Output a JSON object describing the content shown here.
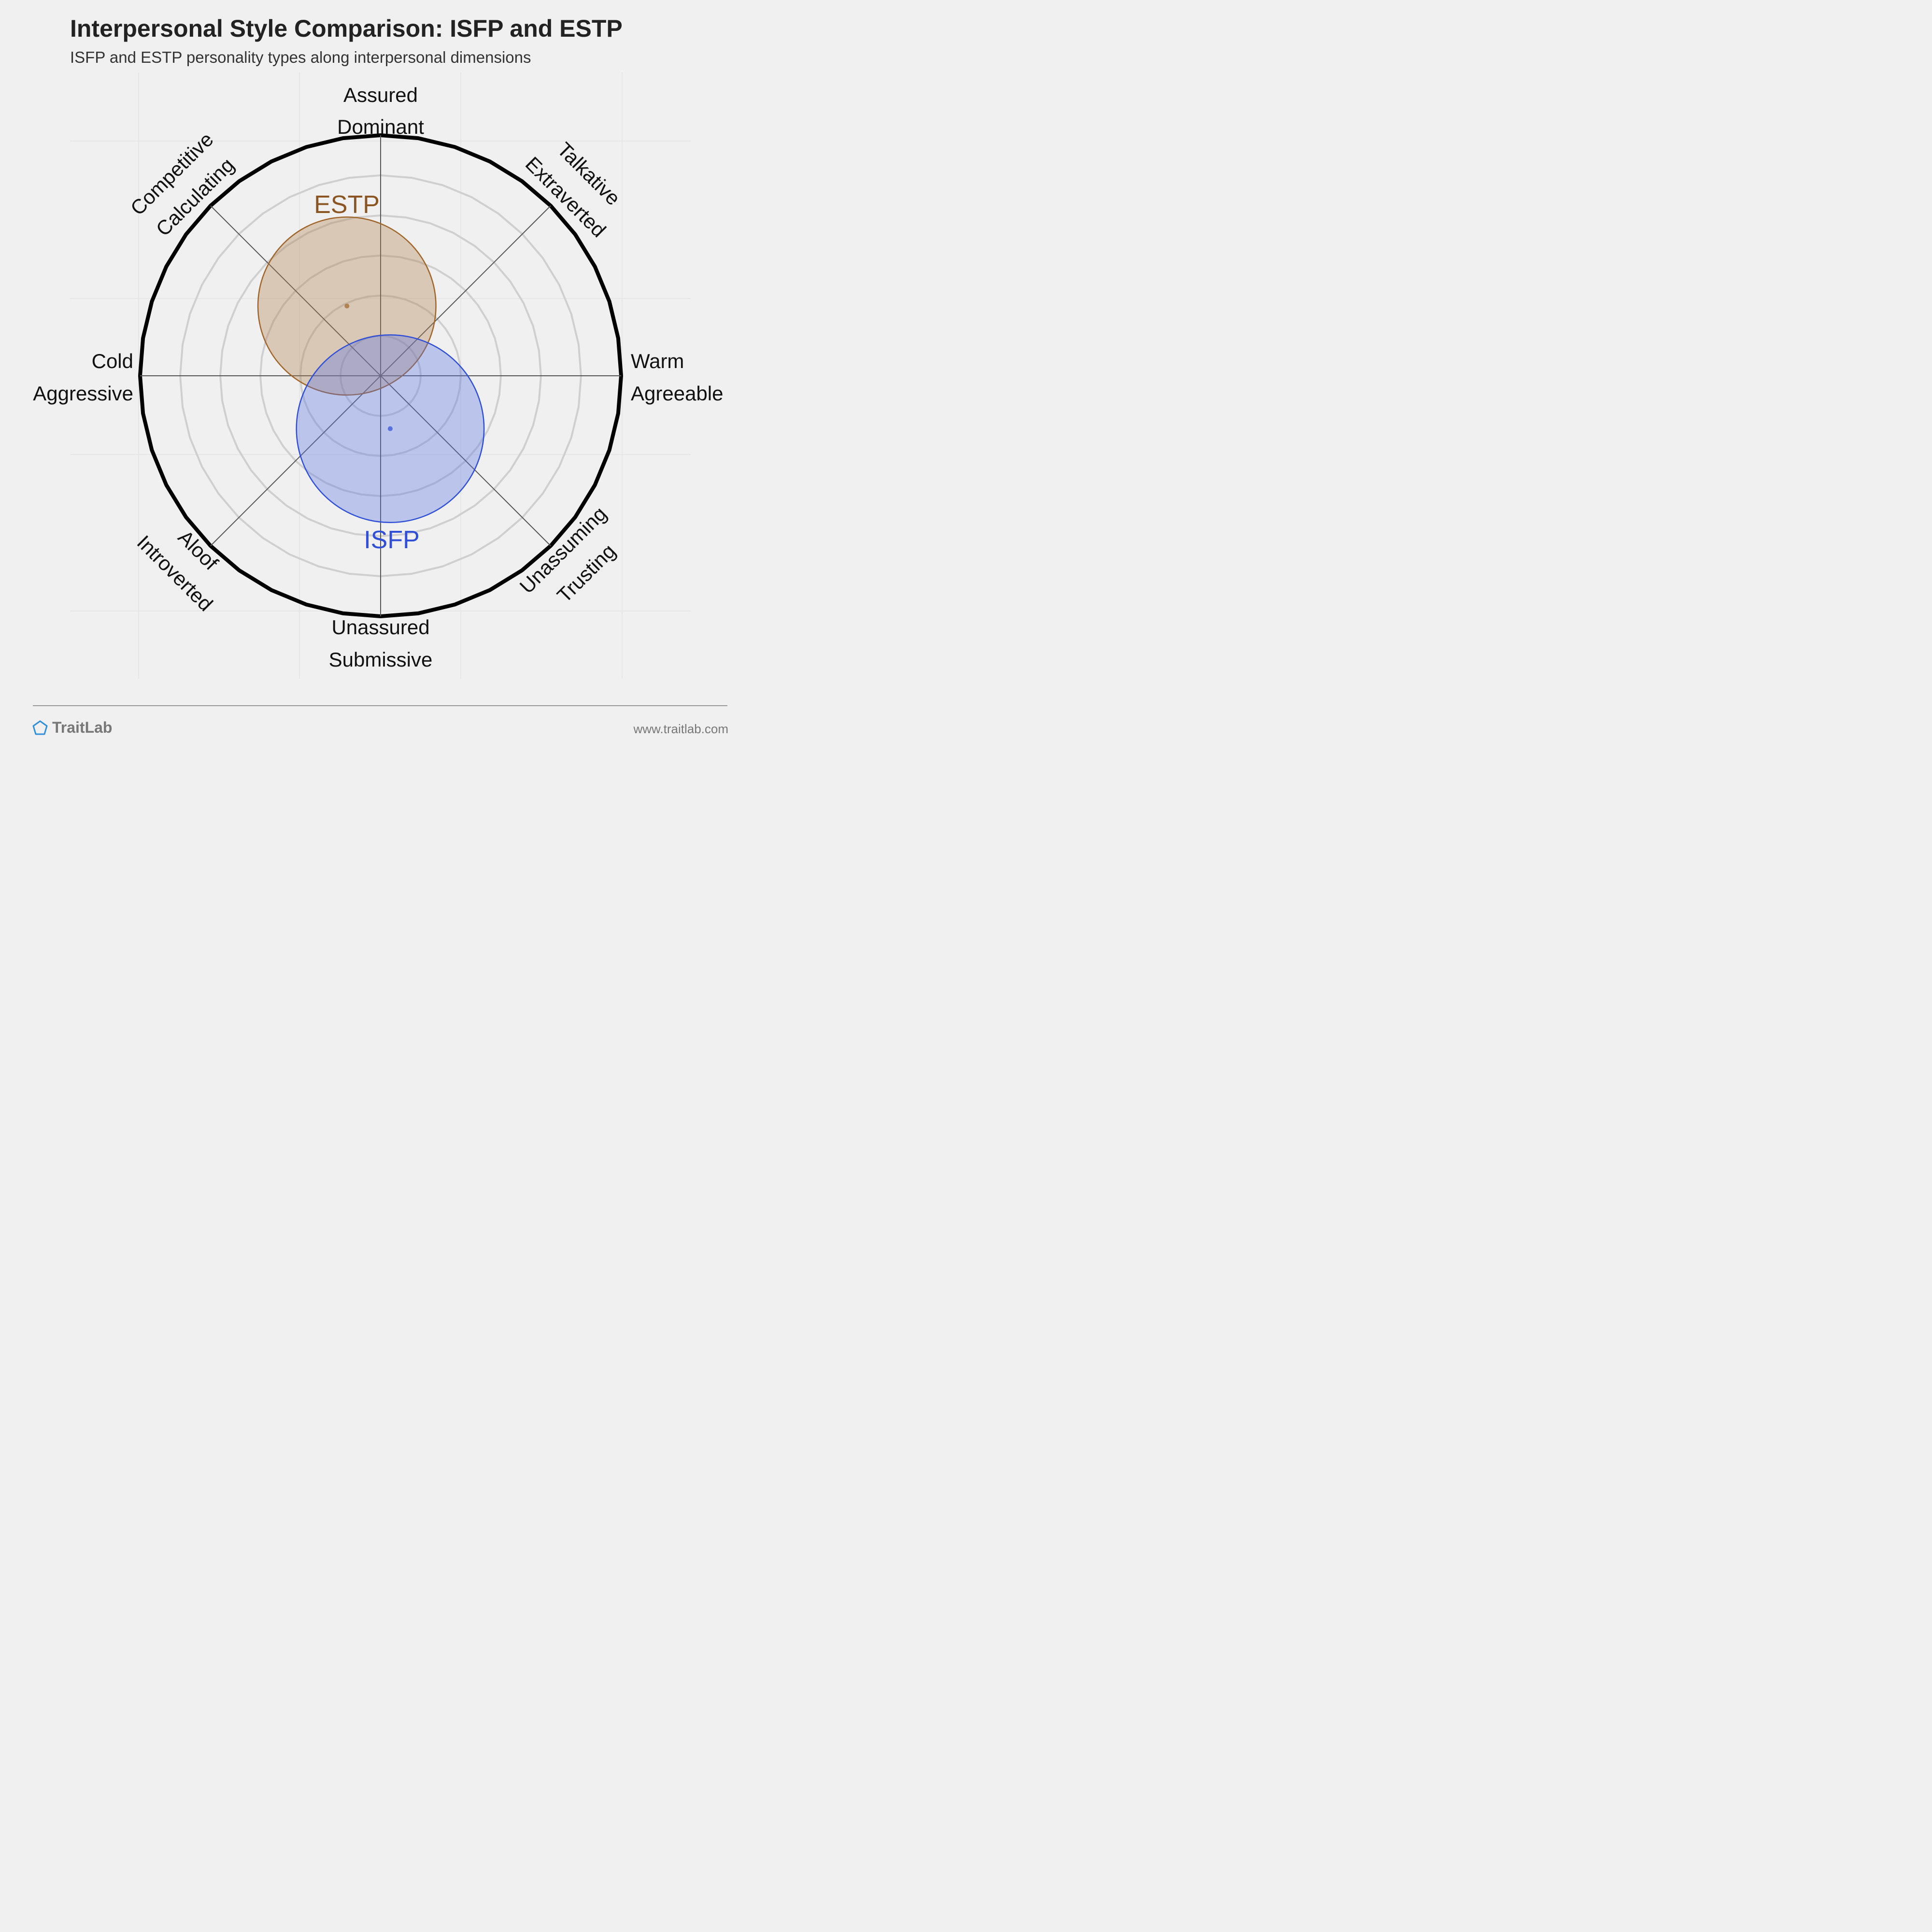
{
  "title": "Interpersonal Style Comparison: ISFP and ESTP",
  "subtitle": "ISFP and ESTP personality types along interpersonal dimensions",
  "axes": {
    "top": [
      "Assured",
      "Dominant"
    ],
    "bottom": [
      "Unassured",
      "Submissive"
    ],
    "left": [
      "Cold",
      "Aggressive"
    ],
    "right": [
      "Warm",
      "Agreeable"
    ],
    "top_left": [
      "Competitive",
      "Calculating"
    ],
    "top_right": [
      "Talkative",
      "Extraverted"
    ],
    "bottom_left": [
      "Aloof",
      "Introverted"
    ],
    "bottom_right": [
      "Unassuming",
      "Trusting"
    ]
  },
  "chart_data": {
    "type": "scatter",
    "x_axis": "Cold/Aggressive to Warm/Agreeable",
    "y_axis": "Unassured/Submissive to Assured/Dominant",
    "xlim": [
      -1,
      1
    ],
    "ylim": [
      -1,
      1
    ],
    "rings": 6,
    "grid": true,
    "series": [
      {
        "name": "ESTP",
        "x": -0.14,
        "y": 0.29,
        "spread": 0.37,
        "color": "#a0652a",
        "fill": "rgba(174,126,72,0.35)"
      },
      {
        "name": "ISFP",
        "x": 0.04,
        "y": -0.22,
        "spread": 0.39,
        "color": "#2f4fd6",
        "fill": "rgba(90,115,225,0.35)"
      }
    ]
  },
  "footer": {
    "brand": "TraitLab",
    "url": "www.traitlab.com"
  },
  "colors": {
    "background": "#f0f0f0",
    "ring": "#cfcfcf",
    "outer_ring": "#000000",
    "brand_icon": "#2f8fd8"
  }
}
